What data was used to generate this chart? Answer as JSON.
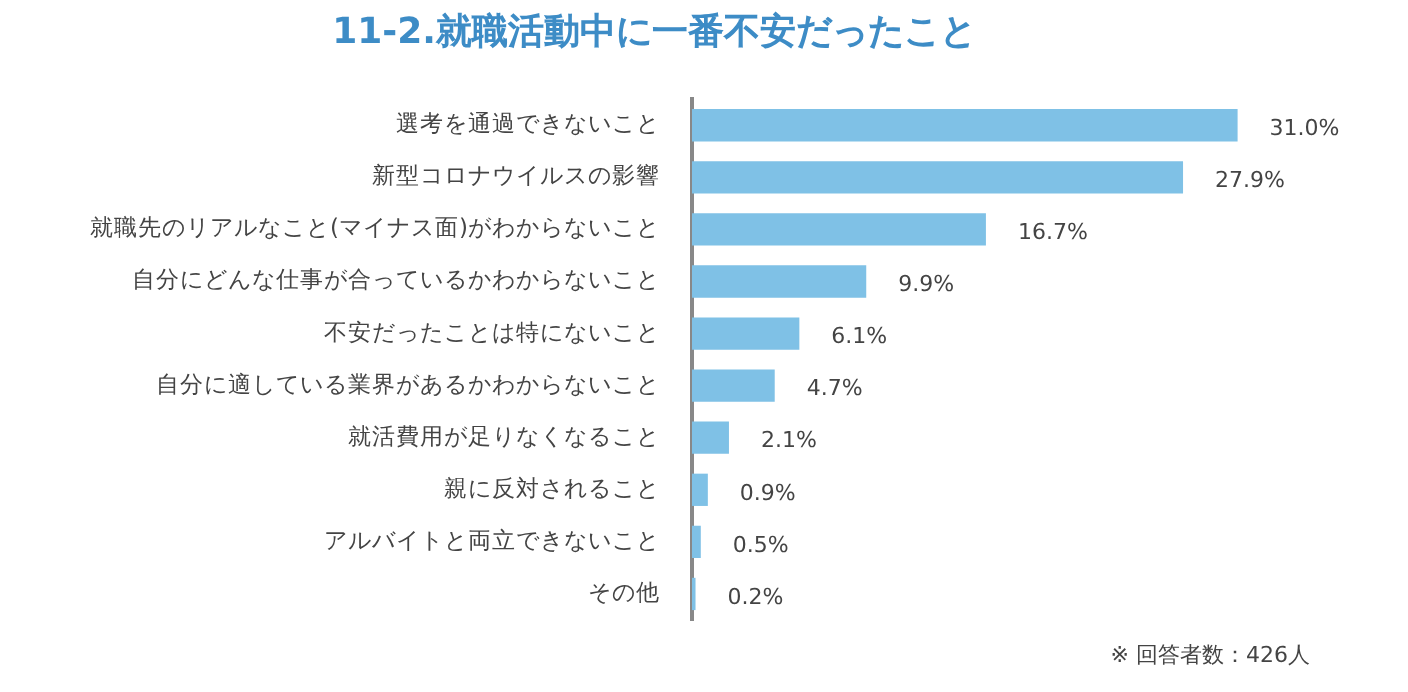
{
  "chart_data": {
    "type": "bar",
    "orientation": "horizontal",
    "title": "11-2.就職活動中に一番不安だったこと",
    "categories": [
      "選考を通過できないこと",
      "新型コロナウイルスの影響",
      "就職先のリアルなこと(マイナス面)がわからないこと",
      "自分にどんな仕事が合っているかわからないこと",
      "不安だったことは特にないこと",
      "自分に適している業界があるかわからないこと",
      "就活費用が足りなくなること",
      "親に反対されること",
      "アルバイトと両立できないこと",
      "その他"
    ],
    "values": [
      31.0,
      27.9,
      16.7,
      9.9,
      6.1,
      4.7,
      2.1,
      0.9,
      0.5,
      0.2
    ],
    "value_labels": [
      "31.0%",
      "27.9%",
      "16.7%",
      "9.9%",
      "6.1%",
      "4.7%",
      "2.1%",
      "0.9%",
      "0.5%",
      "0.2%"
    ],
    "color": "#7fc1e6",
    "tick_labels": "y",
    "legend": false,
    "annotations": [
      "※ 回答者数：426人"
    ]
  }
}
